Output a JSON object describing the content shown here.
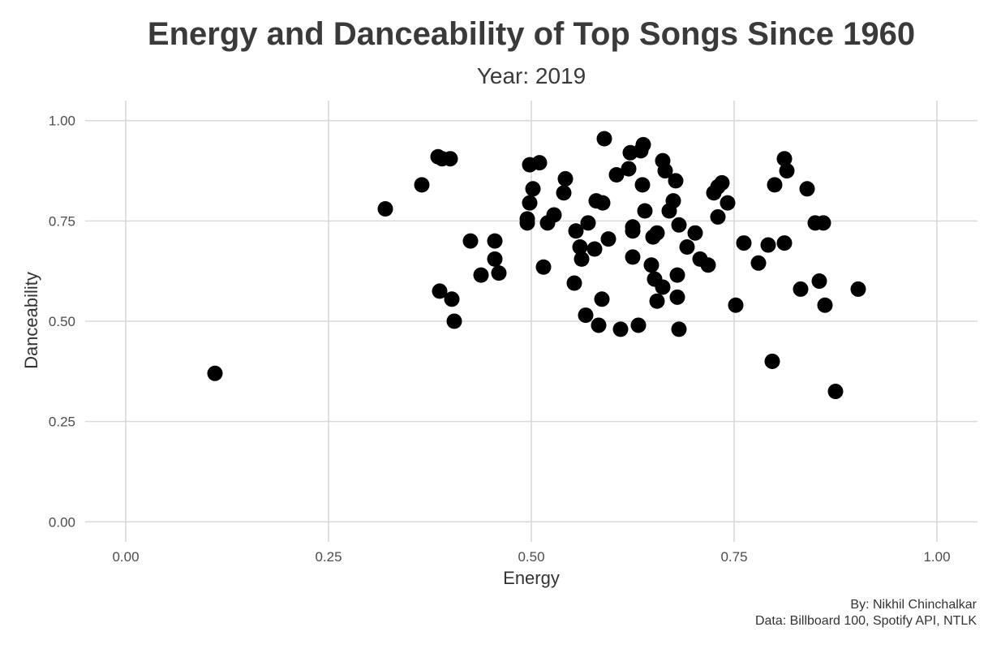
{
  "chart_data": {
    "type": "scatter",
    "title": "Energy and Danceability of Top Songs Since 1960",
    "subtitle": "Year: 2019",
    "xlabel": "Energy",
    "ylabel": "Danceability",
    "xlim": [
      -0.05,
      1.05
    ],
    "ylim": [
      -0.05,
      1.05
    ],
    "xticks": [
      "0.00",
      "0.25",
      "0.50",
      "0.75",
      "1.00"
    ],
    "yticks": [
      "0.00",
      "0.25",
      "0.50",
      "0.75",
      "1.00"
    ],
    "grid": true,
    "point_color": "#000000",
    "grid_color": "#d9d9d9",
    "caption": [
      "By: Nikhil Chinchalkar",
      "Data: Billboard 100, Spotify API, NTLK"
    ],
    "points": [
      [
        0.11,
        0.37
      ],
      [
        0.32,
        0.78
      ],
      [
        0.365,
        0.84
      ],
      [
        0.385,
        0.91
      ],
      [
        0.39,
        0.905
      ],
      [
        0.4,
        0.905
      ],
      [
        0.387,
        0.575
      ],
      [
        0.402,
        0.555
      ],
      [
        0.405,
        0.5
      ],
      [
        0.425,
        0.7
      ],
      [
        0.438,
        0.615
      ],
      [
        0.455,
        0.7
      ],
      [
        0.455,
        0.655
      ],
      [
        0.46,
        0.62
      ],
      [
        0.495,
        0.745
      ],
      [
        0.495,
        0.755
      ],
      [
        0.498,
        0.89
      ],
      [
        0.498,
        0.795
      ],
      [
        0.502,
        0.83
      ],
      [
        0.51,
        0.895
      ],
      [
        0.515,
        0.635
      ],
      [
        0.52,
        0.745
      ],
      [
        0.528,
        0.765
      ],
      [
        0.54,
        0.82
      ],
      [
        0.542,
        0.855
      ],
      [
        0.553,
        0.595
      ],
      [
        0.555,
        0.725
      ],
      [
        0.56,
        0.685
      ],
      [
        0.562,
        0.655
      ],
      [
        0.567,
        0.515
      ],
      [
        0.57,
        0.745
      ],
      [
        0.578,
        0.68
      ],
      [
        0.58,
        0.8
      ],
      [
        0.583,
        0.49
      ],
      [
        0.587,
        0.555
      ],
      [
        0.588,
        0.795
      ],
      [
        0.59,
        0.955
      ],
      [
        0.595,
        0.705
      ],
      [
        0.605,
        0.865
      ],
      [
        0.61,
        0.48
      ],
      [
        0.62,
        0.88
      ],
      [
        0.622,
        0.92
      ],
      [
        0.625,
        0.66
      ],
      [
        0.625,
        0.725
      ],
      [
        0.625,
        0.735
      ],
      [
        0.632,
        0.49
      ],
      [
        0.635,
        0.925
      ],
      [
        0.637,
        0.84
      ],
      [
        0.638,
        0.94
      ],
      [
        0.64,
        0.775
      ],
      [
        0.648,
        0.64
      ],
      [
        0.65,
        0.71
      ],
      [
        0.652,
        0.605
      ],
      [
        0.655,
        0.55
      ],
      [
        0.655,
        0.72
      ],
      [
        0.662,
        0.585
      ],
      [
        0.662,
        0.9
      ],
      [
        0.665,
        0.875
      ],
      [
        0.67,
        0.775
      ],
      [
        0.675,
        0.8
      ],
      [
        0.678,
        0.85
      ],
      [
        0.68,
        0.615
      ],
      [
        0.68,
        0.56
      ],
      [
        0.682,
        0.74
      ],
      [
        0.682,
        0.48
      ],
      [
        0.692,
        0.685
      ],
      [
        0.702,
        0.72
      ],
      [
        0.708,
        0.655
      ],
      [
        0.718,
        0.64
      ],
      [
        0.725,
        0.82
      ],
      [
        0.73,
        0.835
      ],
      [
        0.73,
        0.76
      ],
      [
        0.735,
        0.845
      ],
      [
        0.742,
        0.795
      ],
      [
        0.752,
        0.54
      ],
      [
        0.762,
        0.695
      ],
      [
        0.78,
        0.645
      ],
      [
        0.792,
        0.69
      ],
      [
        0.797,
        0.4
      ],
      [
        0.8,
        0.84
      ],
      [
        0.812,
        0.695
      ],
      [
        0.812,
        0.905
      ],
      [
        0.815,
        0.875
      ],
      [
        0.832,
        0.58
      ],
      [
        0.84,
        0.83
      ],
      [
        0.85,
        0.745
      ],
      [
        0.855,
        0.6
      ],
      [
        0.86,
        0.745
      ],
      [
        0.862,
        0.54
      ],
      [
        0.875,
        0.325
      ],
      [
        0.903,
        0.58
      ]
    ]
  }
}
